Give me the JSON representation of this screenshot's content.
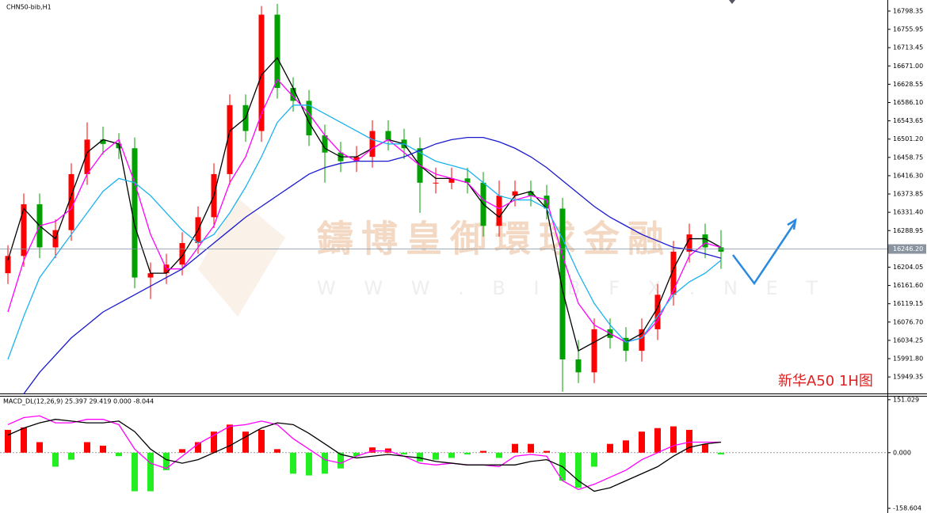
{
  "chart_data": [
    {
      "type": "candlestick",
      "title": "CHN50-bib,H1",
      "watermark": "鑄博皇御環球金融",
      "watermark_url": "W W W . B I B F X . N E T",
      "annotation": "新华A50 1H图",
      "up_color": "#ff0000",
      "down_color": "#00a000",
      "ylim": [
        15911,
        16824
      ],
      "yticks": [
        {
          "value": 16798.35,
          "label": "16798.35"
        },
        {
          "value": 16755.95,
          "label": "16755.95"
        },
        {
          "value": 16713.45,
          "label": "16713.45"
        },
        {
          "value": 16671.0,
          "label": "16671.00"
        },
        {
          "value": 16628.55,
          "label": "16628.55"
        },
        {
          "value": 16586.1,
          "label": "16586.10"
        },
        {
          "value": 16543.65,
          "label": "16543.65"
        },
        {
          "value": 16501.2,
          "label": "16501.20"
        },
        {
          "value": 16458.75,
          "label": "16458.75"
        },
        {
          "value": 16416.3,
          "label": "16416.30"
        },
        {
          "value": 16373.85,
          "label": "16373.85"
        },
        {
          "value": 16331.4,
          "label": "16331.40"
        },
        {
          "value": 16288.95,
          "label": "16288.95"
        },
        {
          "value": 16204.05,
          "label": "16204.05"
        },
        {
          "value": 16161.6,
          "label": "16161.60"
        },
        {
          "value": 16119.15,
          "label": "16119.15"
        },
        {
          "value": 16076.7,
          "label": "16076.70"
        },
        {
          "value": 16034.25,
          "label": "16034.25"
        },
        {
          "value": 15991.8,
          "label": "15991.80"
        },
        {
          "value": 15949.35,
          "label": "15949.35"
        }
      ],
      "current_price": {
        "value": 16246.2,
        "label": "16246.20"
      },
      "ohlc": [
        [
          16190,
          16255,
          16165,
          16230
        ],
        [
          16230,
          16375,
          16205,
          16350
        ],
        [
          16350,
          16375,
          16225,
          16250
        ],
        [
          16250,
          16315,
          16225,
          16290
        ],
        [
          16290,
          16445,
          16265,
          16420
        ],
        [
          16420,
          16540,
          16395,
          16500
        ],
        [
          16500,
          16530,
          16465,
          16490
        ],
        [
          16490,
          16515,
          16455,
          16480
        ],
        [
          16480,
          16505,
          16155,
          16180
        ],
        [
          16180,
          16215,
          16130,
          16190
        ],
        [
          16190,
          16235,
          16165,
          16210
        ],
        [
          16210,
          16285,
          16185,
          16260
        ],
        [
          16260,
          16345,
          16235,
          16320
        ],
        [
          16320,
          16445,
          16295,
          16420
        ],
        [
          16420,
          16605,
          16395,
          16580
        ],
        [
          16580,
          16605,
          16495,
          16520
        ],
        [
          16520,
          16810,
          16495,
          16790
        ],
        [
          16790,
          16815,
          16595,
          16620
        ],
        [
          16620,
          16645,
          16565,
          16590
        ],
        [
          16590,
          16615,
          16485,
          16510
        ],
        [
          16510,
          16535,
          16400,
          16470
        ],
        [
          16470,
          16495,
          16425,
          16450
        ],
        [
          16450,
          16485,
          16425,
          16460
        ],
        [
          16460,
          16545,
          16435,
          16520
        ],
        [
          16520,
          16545,
          16475,
          16500
        ],
        [
          16500,
          16525,
          16455,
          16480
        ],
        [
          16480,
          16505,
          16330,
          16400
        ],
        [
          16400,
          16435,
          16375,
          16400
        ],
        [
          16400,
          16435,
          16385,
          16410
        ],
        [
          16410,
          16435,
          16375,
          16400
        ],
        [
          16400,
          16425,
          16275,
          16300
        ],
        [
          16300,
          16405,
          16275,
          16370
        ],
        [
          16370,
          16405,
          16345,
          16380
        ],
        [
          16380,
          16405,
          16345,
          16370
        ],
        [
          16370,
          16395,
          16315,
          16340
        ],
        [
          16340,
          16365,
          15915,
          15990
        ],
        [
          15990,
          16035,
          15935,
          15960
        ],
        [
          15960,
          16085,
          15935,
          16060
        ],
        [
          16060,
          16085,
          16015,
          16040
        ],
        [
          16040,
          16065,
          15985,
          16010
        ],
        [
          16010,
          16085,
          15985,
          16060
        ],
        [
          16060,
          16165,
          16035,
          16140
        ],
        [
          16140,
          16265,
          16115,
          16240
        ],
        [
          16240,
          16305,
          16215,
          16280
        ],
        [
          16280,
          16305,
          16225,
          16250
        ],
        [
          16250,
          16290,
          16200,
          16240
        ]
      ],
      "series": [
        {
          "color": "#000000",
          "values": [
            16220,
            16340,
            16300,
            16270,
            16370,
            16470,
            16500,
            16490,
            16300,
            16190,
            16190,
            16230,
            16290,
            16370,
            16520,
            16550,
            16650,
            16690,
            16620,
            16540,
            16480,
            16460,
            16460,
            16480,
            16500,
            16490,
            16440,
            16410,
            16410,
            16400,
            16350,
            16320,
            16370,
            16380,
            16340,
            16150,
            16010,
            16030,
            16050,
            16030,
            16050,
            16110,
            16200,
            16270,
            16270,
            16250
          ]
        },
        {
          "color": "#ff00ff",
          "values": [
            16100,
            16220,
            16300,
            16310,
            16340,
            16420,
            16470,
            16500,
            16400,
            16280,
            16200,
            16200,
            16250,
            16300,
            16400,
            16460,
            16560,
            16640,
            16600,
            16560,
            16510,
            16470,
            16450,
            16480,
            16500,
            16470,
            16440,
            16420,
            16410,
            16400,
            16360,
            16340,
            16360,
            16370,
            16360,
            16230,
            16120,
            16070,
            16050,
            16030,
            16040,
            16080,
            16150,
            16230,
            16260,
            16250
          ]
        },
        {
          "color": "#1ab2f0",
          "values": [
            15990,
            16090,
            16180,
            16230,
            16280,
            16330,
            16380,
            16410,
            16400,
            16370,
            16330,
            16290,
            16260,
            16280,
            16330,
            16390,
            16460,
            16540,
            16580,
            16580,
            16560,
            16540,
            16520,
            16500,
            16490,
            16490,
            16470,
            16450,
            16440,
            16430,
            16400,
            16370,
            16360,
            16360,
            16340,
            16270,
            16190,
            16120,
            16070,
            16030,
            16040,
            16090,
            16140,
            16170,
            16190,
            16220
          ]
        },
        {
          "color": "#1a1ad0",
          "values": [
            null,
            15910,
            15960,
            16000,
            16040,
            16070,
            16100,
            16120,
            16140,
            16160,
            16180,
            16200,
            16230,
            16260,
            16290,
            16320,
            16345,
            16370,
            16395,
            16420,
            16435,
            16445,
            16450,
            16450,
            16450,
            16460,
            16475,
            16490,
            16500,
            16505,
            16505,
            16495,
            16480,
            16460,
            16435,
            16405,
            16375,
            16345,
            16320,
            16300,
            16280,
            16265,
            16250,
            16245,
            16235,
            16225
          ]
        }
      ]
    },
    {
      "type": "macd",
      "title": "MACD_DL(12,26,9) 25.397 29.419 0.000 -8.044",
      "up_color": "#ff0000",
      "down_color": "#22ee22",
      "ylim": [
        -172,
        162
      ],
      "yticks": [
        {
          "value": 151.029,
          "label": "151.029"
        },
        {
          "value": 0,
          "label": "0.000"
        },
        {
          "value": -158.604,
          "label": "-158.604"
        }
      ],
      "values": [
        65,
        72,
        30,
        -40,
        -20,
        30,
        20,
        -10,
        -110,
        -110,
        -50,
        10,
        30,
        60,
        80,
        60,
        65,
        10,
        -60,
        -65,
        -60,
        -45,
        -10,
        15,
        12,
        -5,
        -25,
        -20,
        -15,
        -5,
        5,
        -15,
        25,
        25,
        5,
        -80,
        -100,
        -40,
        25,
        35,
        60,
        70,
        75,
        65,
        25,
        -5
      ],
      "series": [
        {
          "color": "#ff00ff",
          "values": [
            80,
            100,
            105,
            85,
            85,
            95,
            95,
            80,
            10,
            -30,
            -45,
            -10,
            25,
            50,
            75,
            80,
            90,
            80,
            40,
            10,
            -20,
            -30,
            -10,
            5,
            5,
            -10,
            -30,
            -35,
            -30,
            -35,
            -35,
            -40,
            -10,
            -5,
            -10,
            -80,
            -105,
            -90,
            -70,
            -50,
            -20,
            0,
            20,
            30,
            30,
            30
          ]
        },
        {
          "color": "#000000",
          "values": [
            50,
            70,
            85,
            95,
            90,
            85,
            85,
            90,
            60,
            10,
            -20,
            -30,
            -20,
            0,
            20,
            45,
            70,
            85,
            80,
            55,
            25,
            -5,
            -15,
            -10,
            -5,
            -10,
            -15,
            -25,
            -30,
            -35,
            -35,
            -35,
            -35,
            -25,
            -20,
            -40,
            -80,
            -110,
            -100,
            -80,
            -60,
            -40,
            -10,
            15,
            25,
            30
          ]
        }
      ]
    }
  ]
}
